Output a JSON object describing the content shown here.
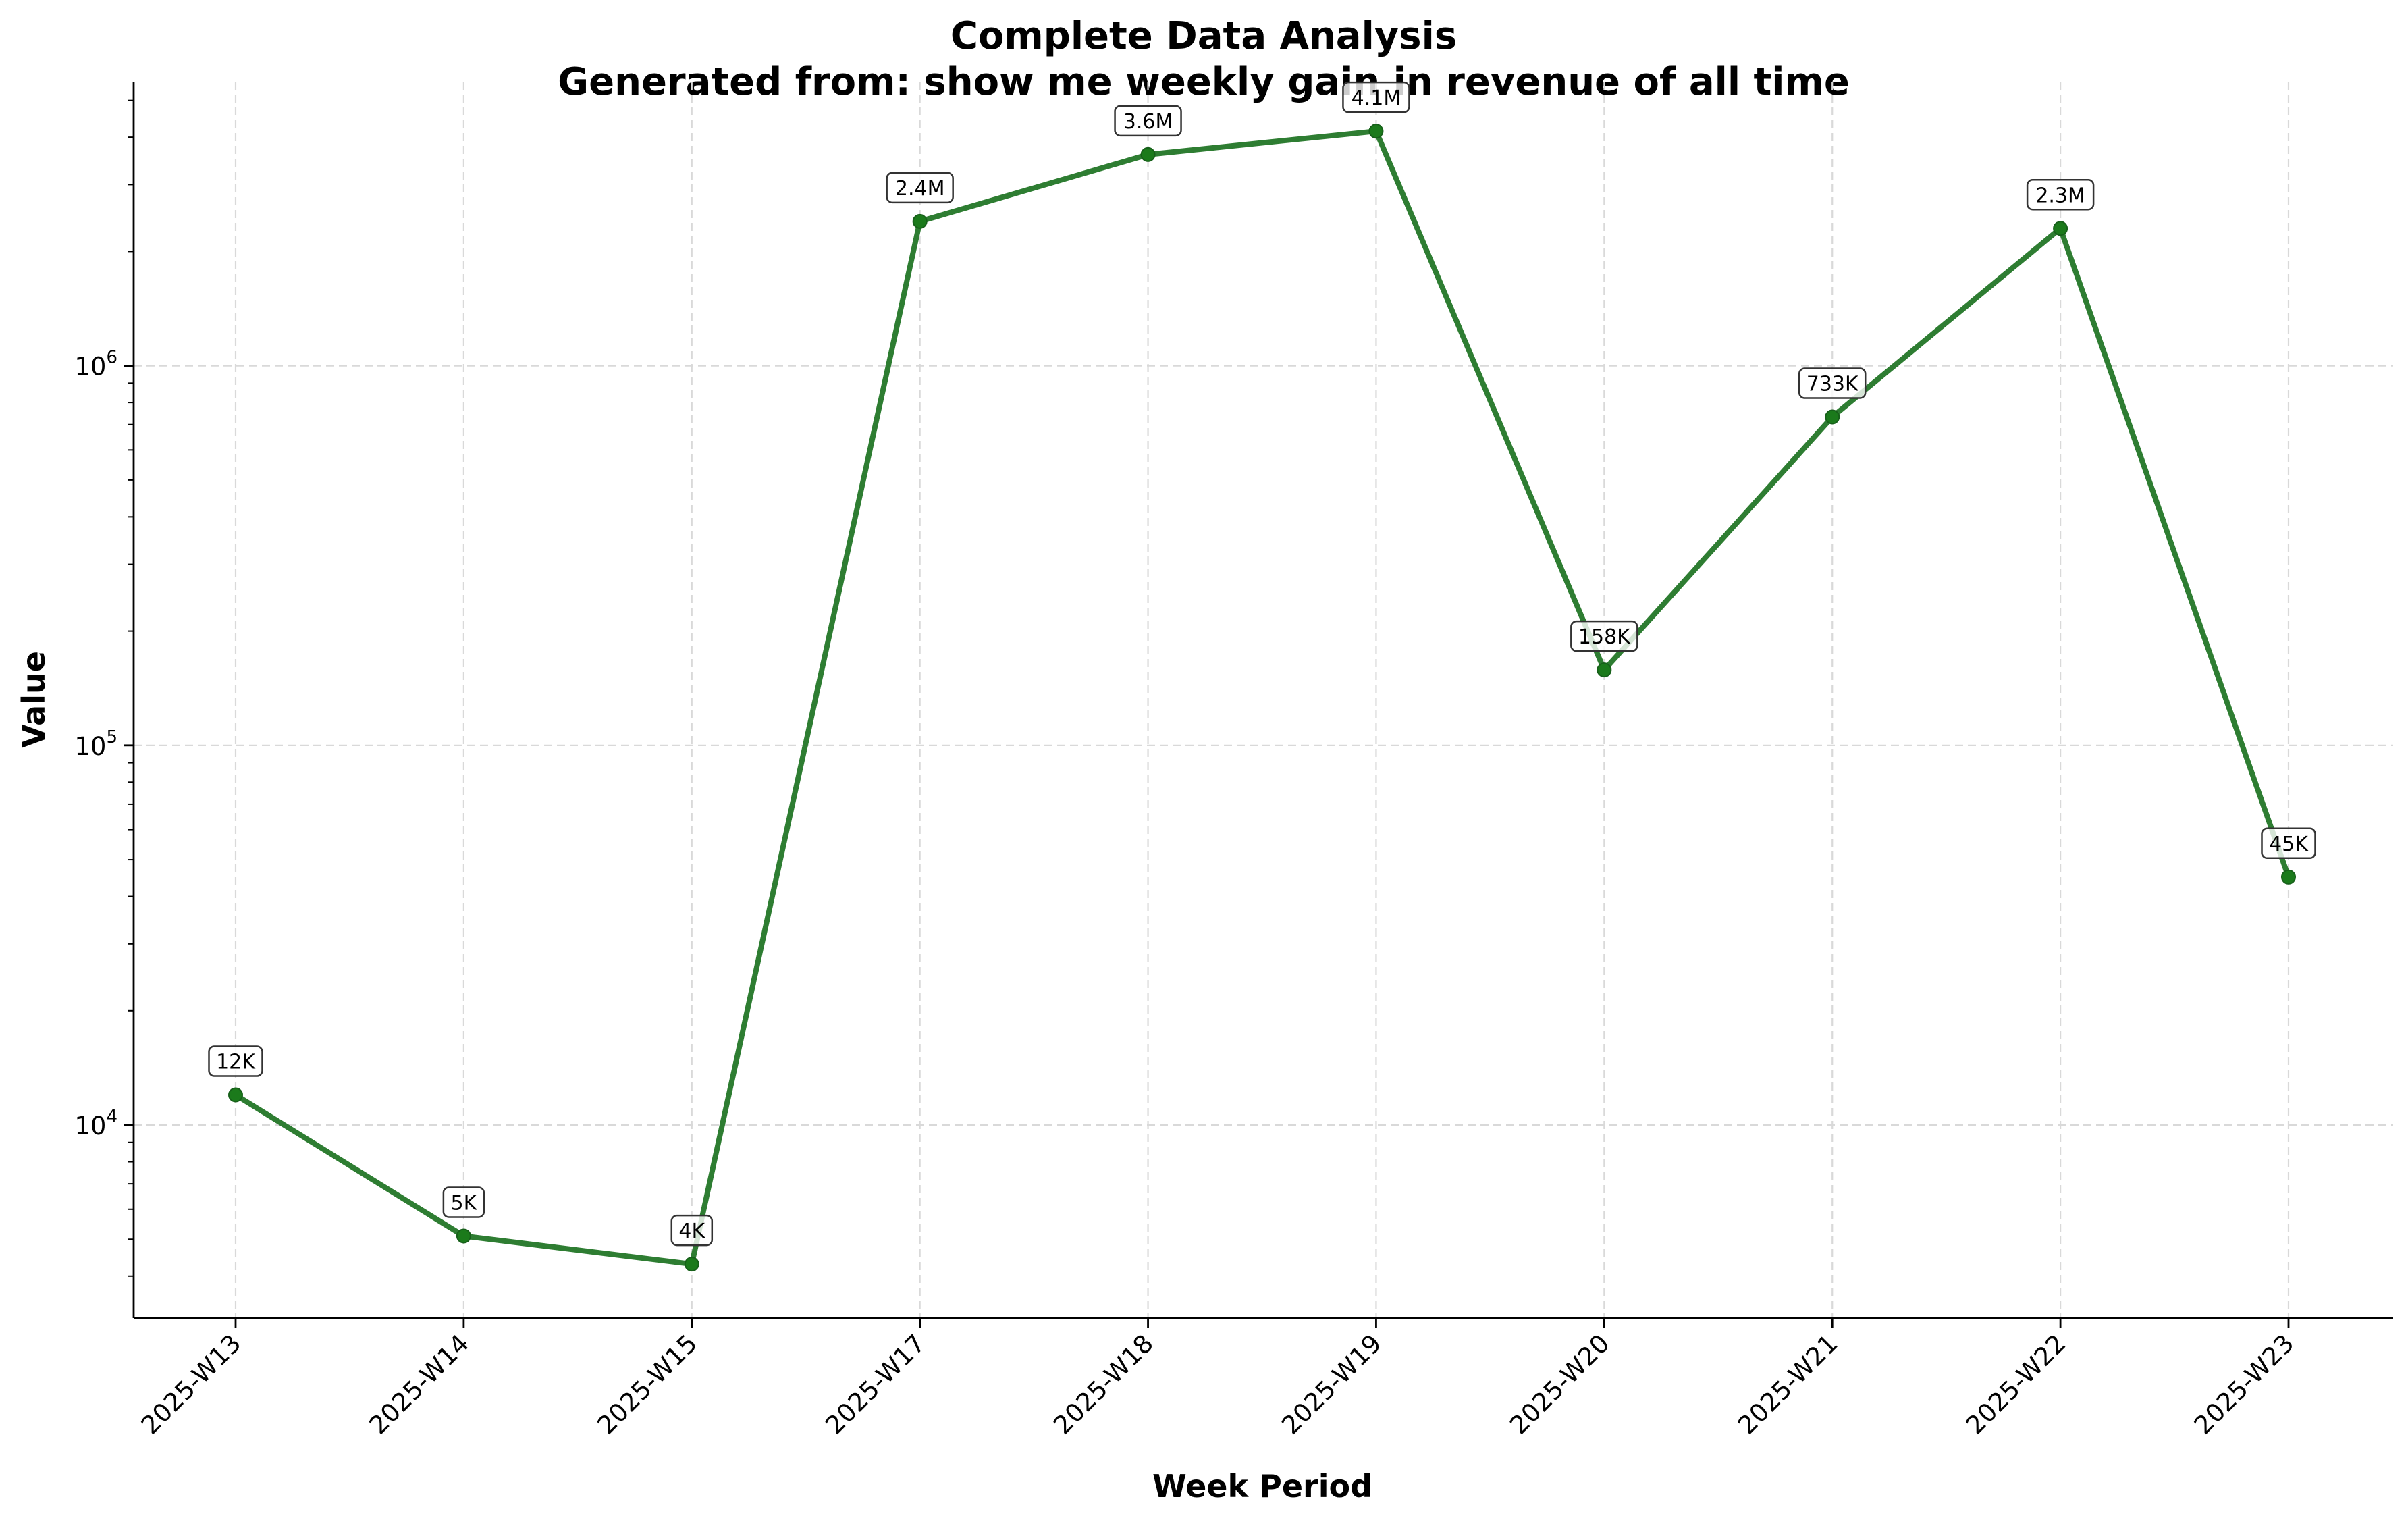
{
  "chart_data": {
    "type": "line",
    "title": "Complete Data Analysis",
    "subtitle": "Generated from: show me weekly gain in revenue of all time",
    "xlabel": "Week Period",
    "ylabel": "Value",
    "yscale": "log",
    "ylim": [
      3100,
      5600000
    ],
    "yticks": [
      {
        "value": 10000,
        "base": "10",
        "exp": "4"
      },
      {
        "value": 100000,
        "base": "10",
        "exp": "5"
      },
      {
        "value": 1000000,
        "base": "10",
        "exp": "6"
      }
    ],
    "grid": true,
    "categories": [
      "2025-W13",
      "2025-W14",
      "2025-W15",
      "2025-W17",
      "2025-W18",
      "2025-W19",
      "2025-W20",
      "2025-W21",
      "2025-W22",
      "2025-W23"
    ],
    "series": [
      {
        "color": "#2e7d32",
        "marker_color": "#1b7a1b",
        "values": [
          12000,
          5100,
          4300,
          2400000,
          3600000,
          4150000,
          158000,
          733000,
          2300000,
          45000
        ],
        "labels": [
          "12K",
          "5K",
          "4K",
          "2.4M",
          "3.6M",
          "4.1M",
          "158K",
          "733K",
          "2.3M",
          "45K"
        ]
      }
    ]
  }
}
